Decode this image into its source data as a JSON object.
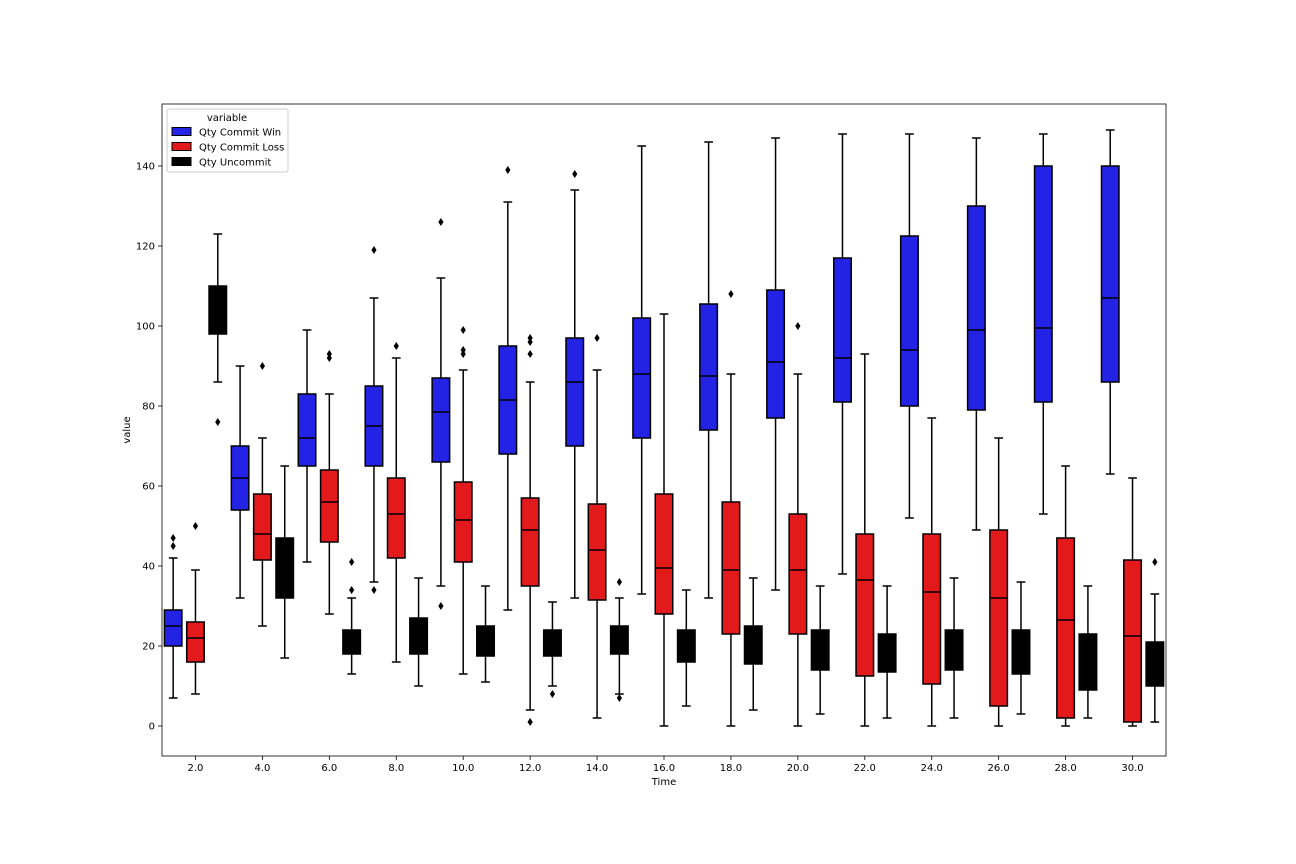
{
  "chart_data": {
    "type": "box",
    "xlabel": "Time",
    "ylabel": "value",
    "ylim": [
      -7.5,
      155.5
    ],
    "yticks": [
      0,
      20,
      40,
      60,
      80,
      100,
      120,
      140
    ],
    "categories": [
      "2.0",
      "4.0",
      "6.0",
      "8.0",
      "10.0",
      "12.0",
      "14.0",
      "16.0",
      "18.0",
      "20.0",
      "22.0",
      "24.0",
      "26.0",
      "28.0",
      "30.0"
    ],
    "legend": {
      "title": "variable",
      "placement": "top-left"
    },
    "series": [
      {
        "name": "Qty Commit Win",
        "color": "#2323e6",
        "boxes": [
          {
            "wlo": 7,
            "q1": 20,
            "med": 25,
            "q3": 29,
            "whi": 42,
            "outliers": [
              45,
              47
            ]
          },
          {
            "wlo": 32,
            "q1": 54,
            "med": 62,
            "q3": 70,
            "whi": 90,
            "outliers": []
          },
          {
            "wlo": 41,
            "q1": 65,
            "med": 72,
            "q3": 83,
            "whi": 99,
            "outliers": []
          },
          {
            "wlo": 36,
            "q1": 65,
            "med": 75,
            "q3": 85,
            "whi": 107,
            "outliers": [
              34,
              119
            ]
          },
          {
            "wlo": 35,
            "q1": 66,
            "med": 78.5,
            "q3": 87,
            "whi": 112,
            "outliers": [
              30,
              126
            ]
          },
          {
            "wlo": 29,
            "q1": 68,
            "med": 81.5,
            "q3": 95,
            "whi": 131,
            "outliers": [
              139
            ]
          },
          {
            "wlo": 32,
            "q1": 70,
            "med": 86,
            "q3": 97,
            "whi": 134,
            "outliers": [
              138
            ]
          },
          {
            "wlo": 33,
            "q1": 72,
            "med": 88,
            "q3": 102,
            "whi": 145,
            "outliers": []
          },
          {
            "wlo": 32,
            "q1": 74,
            "med": 87.5,
            "q3": 105.5,
            "whi": 146,
            "outliers": []
          },
          {
            "wlo": 34,
            "q1": 77,
            "med": 91,
            "q3": 109,
            "whi": 147,
            "outliers": []
          },
          {
            "wlo": 38,
            "q1": 81,
            "med": 92,
            "q3": 117,
            "whi": 148,
            "outliers": []
          },
          {
            "wlo": 52,
            "q1": 80,
            "med": 94,
            "q3": 122.5,
            "whi": 148,
            "outliers": []
          },
          {
            "wlo": 49,
            "q1": 79,
            "med": 99,
            "q3": 130,
            "whi": 147,
            "outliers": []
          },
          {
            "wlo": 53,
            "q1": 81,
            "med": 99.5,
            "q3": 140,
            "whi": 148,
            "outliers": []
          },
          {
            "wlo": 63,
            "q1": 86,
            "med": 107,
            "q3": 140,
            "whi": 149,
            "outliers": []
          }
        ]
      },
      {
        "name": "Qty Commit Loss",
        "color": "#e31a1c",
        "boxes": [
          {
            "wlo": 8,
            "q1": 16,
            "med": 22,
            "q3": 26,
            "whi": 39,
            "outliers": [
              50
            ]
          },
          {
            "wlo": 25,
            "q1": 41.5,
            "med": 48,
            "q3": 58,
            "whi": 72,
            "outliers": [
              90
            ]
          },
          {
            "wlo": 28,
            "q1": 46,
            "med": 56,
            "q3": 64,
            "whi": 83,
            "outliers": [
              92,
              93
            ]
          },
          {
            "wlo": 16,
            "q1": 42,
            "med": 53,
            "q3": 62,
            "whi": 92,
            "outliers": [
              95
            ]
          },
          {
            "wlo": 13,
            "q1": 41,
            "med": 51.5,
            "q3": 61,
            "whi": 89,
            "outliers": [
              93,
              94,
              99
            ]
          },
          {
            "wlo": 4,
            "q1": 35,
            "med": 49,
            "q3": 57,
            "whi": 86,
            "outliers": [
              1,
              93,
              96,
              97
            ]
          },
          {
            "wlo": 2,
            "q1": 31.5,
            "med": 44,
            "q3": 55.5,
            "whi": 89,
            "outliers": [
              97
            ]
          },
          {
            "wlo": 0,
            "q1": 28,
            "med": 39.5,
            "q3": 58,
            "whi": 103,
            "outliers": []
          },
          {
            "wlo": 0,
            "q1": 23,
            "med": 39,
            "q3": 56,
            "whi": 88,
            "outliers": [
              108
            ]
          },
          {
            "wlo": 0,
            "q1": 23,
            "med": 39,
            "q3": 53,
            "whi": 88,
            "outliers": [
              100
            ]
          },
          {
            "wlo": 0,
            "q1": 12.5,
            "med": 36.5,
            "q3": 48,
            "whi": 93,
            "outliers": []
          },
          {
            "wlo": 0,
            "q1": 10.5,
            "med": 33.5,
            "q3": 48,
            "whi": 77,
            "outliers": []
          },
          {
            "wlo": 0,
            "q1": 5,
            "med": 32,
            "q3": 49,
            "whi": 72,
            "outliers": []
          },
          {
            "wlo": 0,
            "q1": 2,
            "med": 26.5,
            "q3": 47,
            "whi": 65,
            "outliers": []
          },
          {
            "wlo": 0,
            "q1": 1,
            "med": 22.5,
            "q3": 41.5,
            "whi": 62,
            "outliers": []
          }
        ]
      },
      {
        "name": "Qty Uncommit",
        "color": "#000000",
        "boxes": [
          {
            "wlo": 86,
            "q1": 98,
            "med": 104,
            "q3": 110,
            "whi": 123,
            "outliers": [
              76
            ]
          },
          {
            "wlo": 17,
            "q1": 32,
            "med": 38,
            "q3": 47,
            "whi": 65,
            "outliers": []
          },
          {
            "wlo": 13,
            "q1": 18,
            "med": 22,
            "q3": 24,
            "whi": 32,
            "outliers": [
              34,
              41
            ]
          },
          {
            "wlo": 10,
            "q1": 18,
            "med": 22,
            "q3": 27,
            "whi": 37,
            "outliers": []
          },
          {
            "wlo": 11,
            "q1": 17.5,
            "med": 21,
            "q3": 25,
            "whi": 35,
            "outliers": []
          },
          {
            "wlo": 10,
            "q1": 17.5,
            "med": 21,
            "q3": 24,
            "whi": 31,
            "outliers": [
              8
            ]
          },
          {
            "wlo": 8,
            "q1": 18,
            "med": 22,
            "q3": 25,
            "whi": 32,
            "outliers": [
              7,
              36
            ]
          },
          {
            "wlo": 5,
            "q1": 16,
            "med": 20,
            "q3": 24,
            "whi": 34,
            "outliers": []
          },
          {
            "wlo": 4,
            "q1": 15.5,
            "med": 19,
            "q3": 25,
            "whi": 37,
            "outliers": []
          },
          {
            "wlo": 3,
            "q1": 14,
            "med": 19,
            "q3": 24,
            "whi": 35,
            "outliers": []
          },
          {
            "wlo": 2,
            "q1": 13.5,
            "med": 19,
            "q3": 23,
            "whi": 35,
            "outliers": []
          },
          {
            "wlo": 2,
            "q1": 14,
            "med": 19,
            "q3": 24,
            "whi": 37,
            "outliers": []
          },
          {
            "wlo": 3,
            "q1": 13,
            "med": 18,
            "q3": 24,
            "whi": 36,
            "outliers": []
          },
          {
            "wlo": 2,
            "q1": 9,
            "med": 16,
            "q3": 23,
            "whi": 35,
            "outliers": []
          },
          {
            "wlo": 1,
            "q1": 10,
            "med": 16,
            "q3": 21,
            "whi": 33,
            "outliers": [
              41
            ]
          }
        ]
      }
    ]
  }
}
